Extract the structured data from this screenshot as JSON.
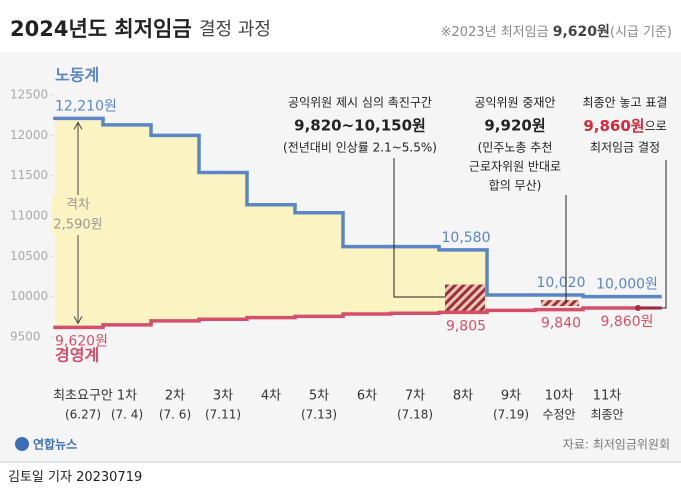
{
  "chart_data": {
    "type": "step",
    "title": "2024년도 최저임금",
    "subtitle": "결정 과정",
    "note": {
      "prefix": "※2023년 최저임금",
      "value": "9,620원",
      "suffix": "(시급 기준)"
    },
    "categories": [
      "최초요구안",
      "1차",
      "2차",
      "3차",
      "4차",
      "5차",
      "6차",
      "7차",
      "8차",
      "9차",
      "10차",
      "11차"
    ],
    "category_sublabels": [
      "(6.27)",
      "(7. 4)",
      "(7. 6)",
      "(7.11)",
      null,
      "(7.13)",
      null,
      "(7.18)",
      null,
      "(7.19)",
      "수정안",
      "최종안"
    ],
    "series": [
      {
        "name": "노동계",
        "color": "#5b86c5",
        "values": [
          12210,
          12130,
          12000,
          11540,
          11140,
          11040,
          10620,
          10620,
          10580,
          10020,
          10020,
          10000
        ],
        "value_labels": [
          "12,210원",
          null,
          null,
          null,
          null,
          null,
          null,
          null,
          "10,580",
          null,
          "10,020",
          "10,000원"
        ]
      },
      {
        "name": "경영계",
        "color": "#d4506a",
        "values": [
          9620,
          9650,
          9700,
          9720,
          9740,
          9755,
          9785,
          9795,
          9805,
          9830,
          9840,
          9860
        ],
        "value_labels": [
          "9,620원",
          null,
          null,
          null,
          null,
          null,
          null,
          null,
          "9,805",
          null,
          "9,840",
          "9,860원"
        ]
      }
    ],
    "gap": {
      "title": "격차",
      "label": "2,590원"
    },
    "promotion_range": {
      "values": [
        9820,
        10150
      ],
      "lines": [
        "공익위원 제시 심의 촉진구간",
        "9,820~10,150원",
        "(전년대비 인상률 2.1~5.5%)"
      ]
    },
    "mediation": {
      "value": 9920,
      "lines": [
        "공익위원 중재안",
        "9,920원",
        "(민주노총 추천",
        "근로자위원 반대로",
        "합의 무산)"
      ]
    },
    "final": {
      "lines": [
        "최종안 놓고 표결",
        "9,860원",
        "으로",
        "최저임금 결정"
      ]
    },
    "fill_color": "#fbf3c2",
    "ylim": [
      9500,
      12500
    ],
    "yticks": [
      9500,
      10000,
      10500,
      11000,
      11500,
      12000,
      12500
    ],
    "source": "자료: 최저임금위원회",
    "logo": "연합뉴스",
    "byline": "김토일 기자",
    "date": "20230719"
  }
}
